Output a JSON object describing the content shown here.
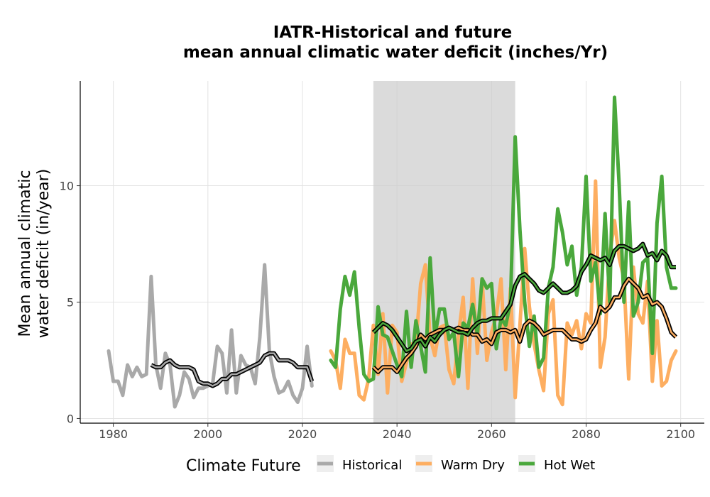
{
  "chart_data": {
    "type": "line",
    "title_line1": "IATR-Historical and future",
    "title_line2": "mean annual climatic water deficit (inches/Yr)",
    "xlabel": "",
    "ylabel_line1": "Mean annual climatic",
    "ylabel_line2": "water deficit (in/year)",
    "xlim": [
      1973,
      2105
    ],
    "ylim": [
      -0.2,
      14.5
    ],
    "x_ticks": [
      1980,
      2000,
      2020,
      2040,
      2060,
      2080,
      2100
    ],
    "x_tick_labels": [
      "1980",
      "2000",
      "2020",
      "2040",
      "2060",
      "2080",
      "2100"
    ],
    "y_ticks": [
      0,
      5,
      10
    ],
    "y_tick_labels": [
      "0",
      "5",
      "10"
    ],
    "grid": true,
    "shaded_period": [
      2035,
      2065
    ],
    "legend": {
      "title": "Climate Future",
      "placement": "bottom",
      "entries": [
        {
          "label": "Historical",
          "color": "#a9a9a9"
        },
        {
          "label": "Warm Dry",
          "color": "#fdae61"
        },
        {
          "label": "Hot Wet",
          "color": "#4aa83c"
        }
      ]
    },
    "series": [
      {
        "name": "Historical",
        "color": "#a9a9a9",
        "x": [
          1979,
          1980,
          1981,
          1982,
          1983,
          1984,
          1985,
          1986,
          1987,
          1988,
          1989,
          1990,
          1991,
          1992,
          1993,
          1994,
          1995,
          1996,
          1997,
          1998,
          1999,
          2000,
          2001,
          2002,
          2003,
          2004,
          2005,
          2006,
          2007,
          2008,
          2009,
          2010,
          2011,
          2012,
          2013,
          2014,
          2015,
          2016,
          2017,
          2018,
          2019,
          2020,
          2021,
          2022
        ],
        "y": [
          2.9,
          1.6,
          1.6,
          1.0,
          2.3,
          1.8,
          2.2,
          1.8,
          1.9,
          6.1,
          2.3,
          1.3,
          2.8,
          2.3,
          0.5,
          1.0,
          2.0,
          1.7,
          0.9,
          1.3,
          1.3,
          1.4,
          1.5,
          3.1,
          2.8,
          1.1,
          3.8,
          1.1,
          2.7,
          2.3,
          2.2,
          1.5,
          3.5,
          6.6,
          2.9,
          1.8,
          1.1,
          1.2,
          1.6,
          1.0,
          0.7,
          1.3,
          3.1,
          1.4
        ]
      },
      {
        "name": "Warm Dry",
        "color": "#fdae61",
        "x": [
          2026,
          2027,
          2028,
          2029,
          2030,
          2031,
          2032,
          2033,
          2034,
          2035,
          2036,
          2037,
          2038,
          2039,
          2040,
          2041,
          2042,
          2043,
          2044,
          2045,
          2046,
          2047,
          2048,
          2049,
          2050,
          2051,
          2052,
          2053,
          2054,
          2055,
          2056,
          2057,
          2058,
          2059,
          2060,
          2061,
          2062,
          2063,
          2064,
          2065,
          2066,
          2067,
          2068,
          2069,
          2070,
          2071,
          2072,
          2073,
          2074,
          2075,
          2076,
          2077,
          2078,
          2079,
          2080,
          2081,
          2082,
          2083,
          2084,
          2085,
          2086,
          2087,
          2088,
          2089,
          2090,
          2091,
          2092,
          2093,
          2094,
          2095,
          2096,
          2097,
          2098,
          2099
        ],
        "y": [
          2.9,
          2.5,
          1.3,
          3.4,
          2.8,
          2.8,
          1.0,
          0.8,
          1.7,
          4.0,
          1.9,
          4.5,
          1.1,
          4.0,
          3.7,
          1.6,
          2.4,
          3.2,
          3.2,
          5.8,
          6.6,
          3.5,
          2.7,
          3.9,
          4.0,
          2.1,
          1.5,
          3.6,
          5.2,
          1.3,
          6.0,
          2.8,
          6.0,
          2.5,
          3.7,
          4.4,
          6.0,
          2.1,
          5.6,
          0.9,
          4.0,
          7.3,
          4.8,
          3.2,
          2.1,
          1.2,
          4.5,
          5.1,
          1.0,
          0.6,
          4.1,
          3.6,
          4.2,
          3.0,
          4.5,
          4.1,
          10.2,
          2.2,
          3.5,
          7.0,
          8.5,
          6.9,
          6.0,
          1.7,
          6.5,
          4.5,
          4.1,
          5.9,
          1.6,
          4.2,
          1.4,
          1.6,
          2.5,
          2.9
        ]
      },
      {
        "name": "Hot Wet",
        "color": "#4aa83c",
        "x": [
          2026,
          2027,
          2028,
          2029,
          2030,
          2031,
          2032,
          2033,
          2034,
          2035,
          2036,
          2037,
          2038,
          2039,
          2040,
          2041,
          2042,
          2043,
          2044,
          2045,
          2046,
          2047,
          2048,
          2049,
          2050,
          2051,
          2052,
          2053,
          2054,
          2055,
          2056,
          2057,
          2058,
          2059,
          2060,
          2061,
          2062,
          2063,
          2064,
          2065,
          2066,
          2067,
          2068,
          2069,
          2070,
          2071,
          2072,
          2073,
          2074,
          2075,
          2076,
          2077,
          2078,
          2079,
          2080,
          2081,
          2082,
          2083,
          2084,
          2085,
          2086,
          2087,
          2088,
          2089,
          2090,
          2091,
          2092,
          2093,
          2094,
          2095,
          2096,
          2097,
          2098,
          2099
        ],
        "y": [
          2.5,
          2.2,
          4.7,
          6.1,
          5.3,
          6.3,
          3.9,
          1.9,
          1.6,
          1.7,
          4.8,
          3.6,
          3.5,
          2.9,
          2.3,
          1.8,
          4.6,
          2.2,
          4.2,
          3.1,
          2.0,
          6.9,
          3.5,
          4.7,
          4.7,
          3.4,
          3.7,
          1.8,
          4.1,
          3.9,
          4.9,
          3.6,
          6.0,
          5.6,
          5.8,
          3.0,
          4.3,
          4.0,
          5.0,
          12.1,
          8.1,
          5.0,
          3.1,
          4.4,
          2.2,
          2.6,
          5.6,
          6.5,
          9.0,
          8.0,
          6.6,
          7.4,
          5.3,
          6.5,
          10.4,
          5.9,
          6.7,
          4.5,
          8.8,
          5.0,
          13.8,
          10.0,
          5.0,
          9.3,
          4.4,
          5.0,
          6.7,
          6.9,
          2.8,
          8.4,
          10.4,
          6.5,
          5.6,
          5.6
        ]
      }
    ],
    "moving_averages": [
      {
        "name": "Historical",
        "color": "#a9a9a9",
        "x": [
          1988,
          1989,
          1990,
          1991,
          1992,
          1993,
          1994,
          1995,
          1996,
          1997,
          1998,
          1999,
          2000,
          2001,
          2002,
          2003,
          2004,
          2005,
          2006,
          2007,
          2008,
          2009,
          2010,
          2011,
          2012,
          2013,
          2014,
          2015,
          2016,
          2017,
          2018,
          2019,
          2020,
          2021,
          2022
        ],
        "y": [
          2.3,
          2.2,
          2.2,
          2.4,
          2.5,
          2.3,
          2.2,
          2.2,
          2.2,
          2.1,
          1.6,
          1.5,
          1.5,
          1.4,
          1.5,
          1.7,
          1.7,
          1.9,
          1.9,
          2.0,
          2.1,
          2.2,
          2.3,
          2.4,
          2.7,
          2.8,
          2.8,
          2.5,
          2.5,
          2.5,
          2.4,
          2.2,
          2.2,
          2.2,
          1.6
        ]
      },
      {
        "name": "Warm Dry",
        "color": "#fdae61",
        "x": [
          2035,
          2036,
          2037,
          2038,
          2039,
          2040,
          2041,
          2042,
          2043,
          2044,
          2045,
          2046,
          2047,
          2048,
          2049,
          2050,
          2051,
          2052,
          2053,
          2054,
          2055,
          2056,
          2057,
          2058,
          2059,
          2060,
          2061,
          2062,
          2063,
          2064,
          2065,
          2066,
          2067,
          2068,
          2069,
          2070,
          2071,
          2072,
          2073,
          2074,
          2075,
          2076,
          2077,
          2078,
          2079,
          2080,
          2081,
          2082,
          2083,
          2084,
          2085,
          2086,
          2087,
          2088,
          2089,
          2090,
          2091,
          2092,
          2093,
          2094,
          2095,
          2096,
          2097,
          2098,
          2099
        ],
        "y": [
          2.2,
          2.0,
          2.2,
          2.2,
          2.2,
          2.0,
          2.3,
          2.6,
          2.8,
          3.1,
          3.6,
          3.4,
          3.6,
          3.7,
          3.8,
          3.8,
          3.9,
          3.8,
          3.9,
          3.8,
          3.8,
          3.6,
          3.6,
          3.3,
          3.4,
          3.2,
          3.7,
          3.8,
          3.8,
          3.7,
          3.8,
          3.3,
          4.0,
          4.2,
          4.1,
          3.9,
          3.6,
          3.7,
          3.8,
          3.8,
          3.8,
          3.6,
          3.4,
          3.4,
          3.3,
          3.4,
          3.8,
          4.1,
          4.8,
          4.6,
          4.8,
          5.2,
          5.2,
          5.7,
          6.0,
          5.8,
          5.6,
          5.2,
          5.3,
          4.9,
          5.0,
          4.8,
          4.3,
          3.7,
          3.5
        ]
      },
      {
        "name": "Hot Wet",
        "color": "#4aa83c",
        "x": [
          2035,
          2036,
          2037,
          2038,
          2039,
          2040,
          2041,
          2042,
          2043,
          2044,
          2045,
          2046,
          2047,
          2048,
          2049,
          2050,
          2051,
          2052,
          2053,
          2054,
          2055,
          2056,
          2057,
          2058,
          2059,
          2060,
          2061,
          2062,
          2063,
          2064,
          2065,
          2066,
          2067,
          2068,
          2069,
          2070,
          2071,
          2072,
          2073,
          2074,
          2075,
          2076,
          2077,
          2078,
          2079,
          2080,
          2081,
          2082,
          2083,
          2084,
          2085,
          2086,
          2087,
          2088,
          2089,
          2090,
          2091,
          2092,
          2093,
          2094,
          2095,
          2096,
          2097,
          2098,
          2099
        ],
        "y": [
          3.7,
          3.9,
          4.1,
          4.0,
          3.8,
          3.5,
          3.2,
          2.9,
          3.0,
          3.3,
          3.4,
          3.1,
          3.5,
          3.3,
          3.6,
          3.8,
          3.9,
          3.8,
          3.7,
          3.7,
          3.6,
          3.9,
          4.1,
          4.2,
          4.2,
          4.3,
          4.3,
          4.3,
          4.6,
          4.9,
          5.7,
          6.1,
          6.2,
          6.0,
          5.8,
          5.5,
          5.4,
          5.6,
          5.8,
          5.6,
          5.4,
          5.4,
          5.5,
          5.7,
          6.3,
          6.6,
          7.0,
          6.9,
          6.8,
          6.9,
          6.6,
          7.2,
          7.4,
          7.4,
          7.3,
          7.2,
          7.3,
          7.5,
          7.0,
          7.1,
          6.8,
          7.2,
          7.0,
          6.5,
          6.5
        ]
      }
    ]
  }
}
